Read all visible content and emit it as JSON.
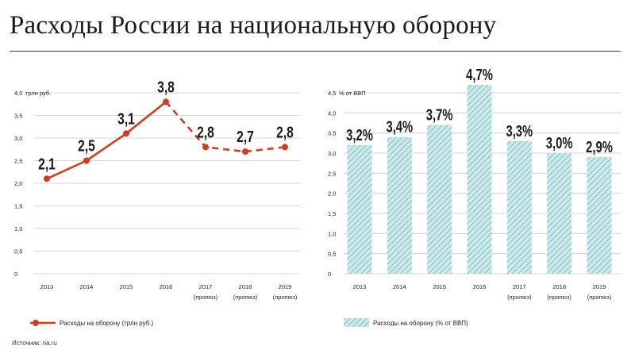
{
  "title": "Расходы России на национальную оборону",
  "source": "Источник: ria.ru",
  "colors": {
    "line": "#d63a1e",
    "bar_fill": "#cfe9ea",
    "bar_stripe": "#7fc4c6",
    "grid": "#c8c8c8",
    "text": "#222222"
  },
  "chart_data": [
    {
      "type": "line",
      "title": "",
      "ylabel": "трлн руб.",
      "ylim": [
        0,
        4.0
      ],
      "yticks": [
        "0",
        "0,5",
        "1,0",
        "1,5",
        "2,0",
        "2,5",
        "3,0",
        "3,5",
        "4,0"
      ],
      "categories": [
        "2013",
        "2014",
        "2015",
        "2016",
        "2017",
        "2018",
        "2019"
      ],
      "category_sublabels": [
        "",
        "",
        "",
        "",
        "(пропюз)",
        "(пропюз)",
        "(пропюз)"
      ],
      "values": [
        2.1,
        2.5,
        3.1,
        3.8,
        2.8,
        2.7,
        2.8
      ],
      "data_labels": [
        "2,1",
        "2,5",
        "3,1",
        "3,8",
        "2,8",
        "2,7",
        "2,8"
      ],
      "solid_until_index": 3,
      "legend": "Расходы на оборону (трлн руб.)"
    },
    {
      "type": "bar",
      "title": "",
      "ylabel": "% от ВВП",
      "ylim": [
        0,
        4.5
      ],
      "yticks": [
        "0",
        "0,5",
        "1,0",
        "1,5",
        "2,0",
        "2,5",
        "3,0",
        "3,5",
        "4,0",
        "4,5"
      ],
      "categories": [
        "2013",
        "2014",
        "2015",
        "2016",
        "2017",
        "2018",
        "2019"
      ],
      "category_sublabels": [
        "",
        "",
        "",
        "",
        "(пропюз)",
        "(пропюз)",
        "(пропюз)"
      ],
      "values": [
        3.2,
        3.4,
        3.7,
        4.7,
        3.3,
        3.0,
        2.9
      ],
      "data_labels": [
        "3,2%",
        "3,4%",
        "3,7%",
        "4,7%",
        "3,3%",
        "3,0%",
        "2,9%"
      ],
      "legend": "Расходы на оборону (% от ВВП)"
    }
  ]
}
